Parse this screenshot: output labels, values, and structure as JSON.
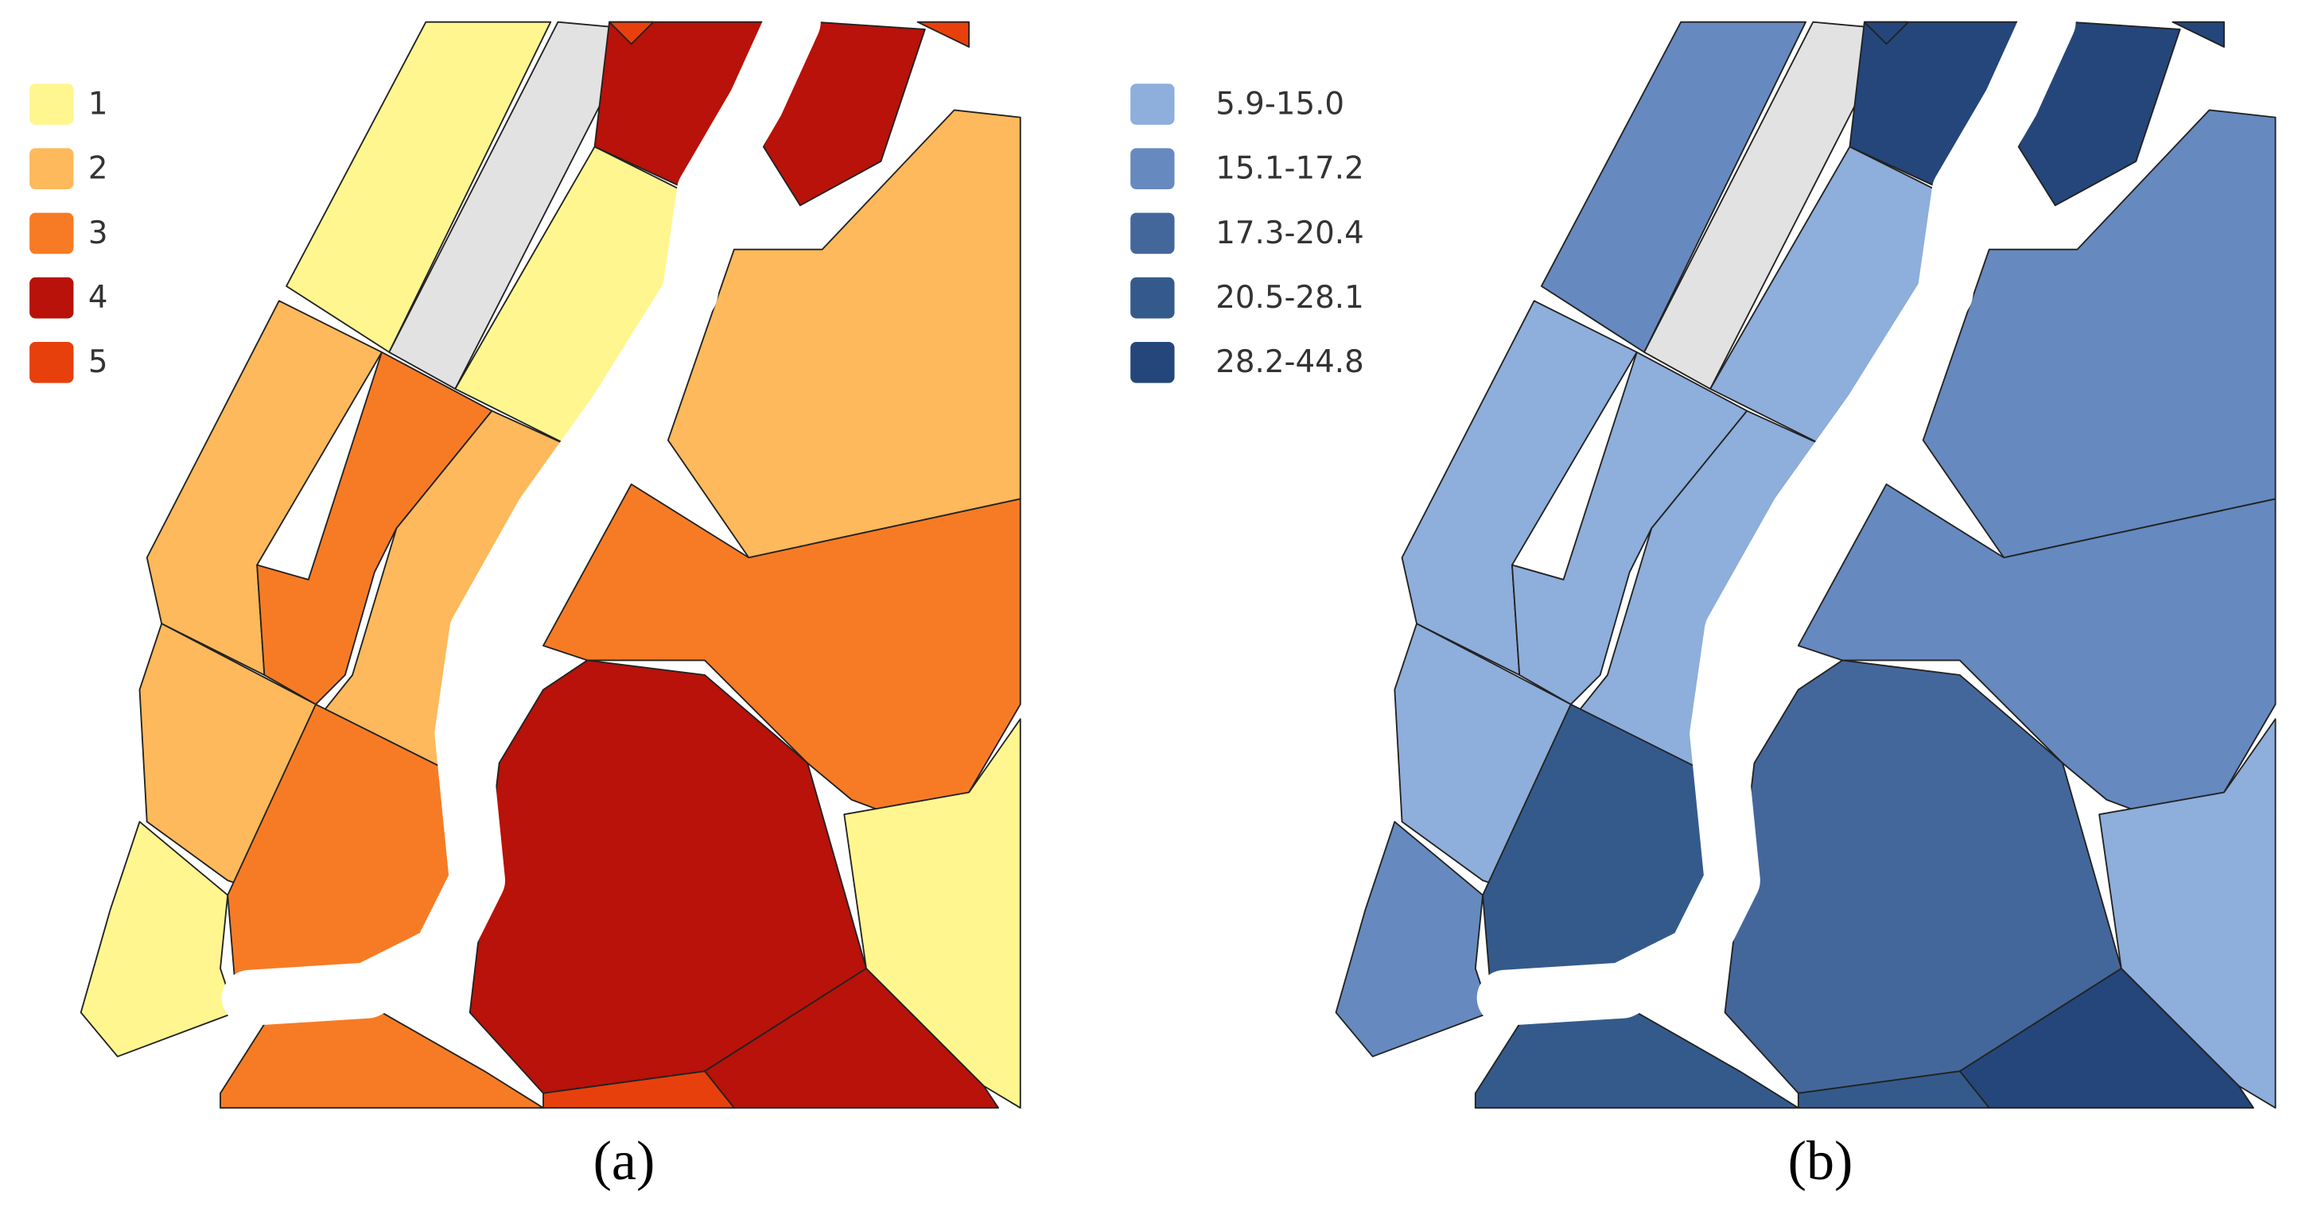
{
  "maps": [
    {
      "caption": "(a)",
      "legend": [
        {
          "label": "1",
          "color": "#fff68f"
        },
        {
          "label": "2",
          "color": "#fdb95b"
        },
        {
          "label": "3",
          "color": "#f77b25"
        },
        {
          "label": "4",
          "color": "#b8120a"
        },
        {
          "label": "5",
          "color": "#e8400c"
        }
      ]
    },
    {
      "caption": "(b)",
      "legend": [
        {
          "label": "5.9-15.0",
          "color": "#8eaedb"
        },
        {
          "label": "15.1-17.2",
          "color": "#6689bf"
        },
        {
          "label": "17.3-20.4",
          "color": "#44679b"
        },
        {
          "label": "20.5-28.1",
          "color": "#345a8c"
        },
        {
          "label": "28.2-44.8",
          "color": "#24467a"
        }
      ]
    }
  ]
}
